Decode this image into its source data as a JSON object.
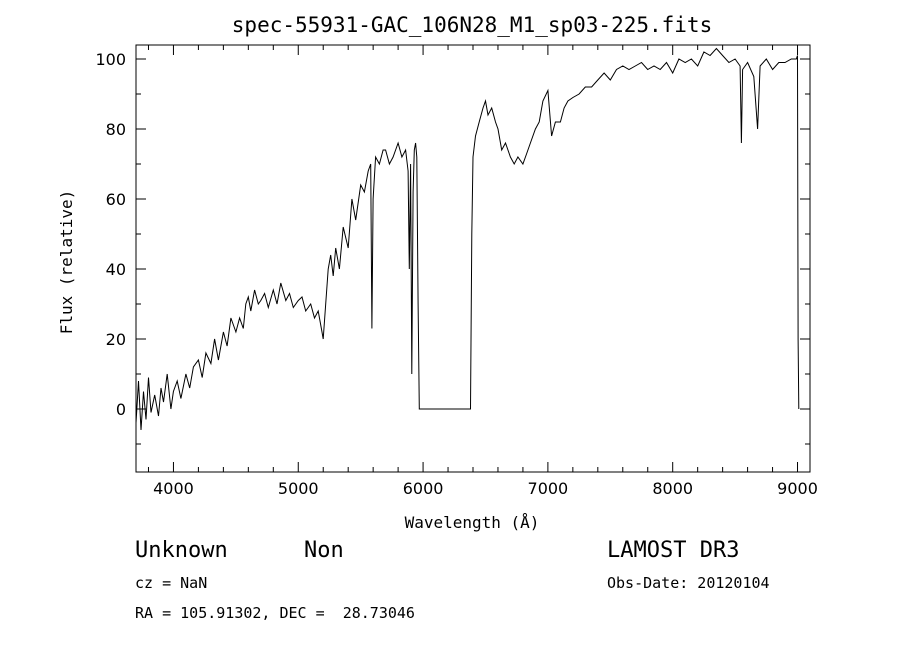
{
  "chart_data": {
    "type": "line",
    "title": "spec-55931-GAC_106N28_M1_sp03-225.fits",
    "xlabel": "Wavelength (Å)",
    "ylabel": "Flux (relative)",
    "xlim": [
      3700,
      9100
    ],
    "ylim": [
      -18,
      104
    ],
    "xticks": [
      4000,
      5000,
      6000,
      7000,
      8000,
      9000
    ],
    "yticks": [
      0,
      20,
      40,
      60,
      80,
      100
    ],
    "grid": false,
    "series": [
      {
        "x": [
          3700,
          3720,
          3740,
          3760,
          3780,
          3800,
          3820,
          3850,
          3880,
          3900,
          3920,
          3950,
          3980,
          4000,
          4030,
          4060,
          4100,
          4130,
          4160,
          4200,
          4230,
          4260,
          4300,
          4330,
          4360,
          4400,
          4430,
          4460,
          4500,
          4530,
          4560,
          4580,
          4600,
          4620,
          4650,
          4680,
          4700,
          4730,
          4760,
          4800,
          4830,
          4860,
          4900,
          4930,
          4960,
          5000,
          5030,
          5060,
          5100,
          5130,
          5160,
          5190,
          5200,
          5220,
          5240,
          5260,
          5280,
          5300,
          5330,
          5360,
          5400,
          5430,
          5460,
          5500,
          5530,
          5560,
          5580,
          5590,
          5600,
          5620,
          5650,
          5680,
          5700,
          5730,
          5760,
          5800,
          5830,
          5860,
          5880,
          5890,
          5900,
          5910,
          5920,
          5930,
          5940,
          5950,
          5960,
          5970,
          5980,
          6000,
          6100,
          6200,
          6300,
          6380,
          6390,
          6400,
          6420,
          6450,
          6480,
          6500,
          6520,
          6550,
          6580,
          6600,
          6630,
          6660,
          6700,
          6730,
          6760,
          6800,
          6830,
          6860,
          6900,
          6930,
          6960,
          7000,
          7030,
          7060,
          7100,
          7130,
          7160,
          7200,
          7250,
          7300,
          7350,
          7400,
          7450,
          7500,
          7550,
          7600,
          7650,
          7700,
          7750,
          7800,
          7850,
          7900,
          7950,
          8000,
          8050,
          8100,
          8150,
          8200,
          8250,
          8300,
          8350,
          8400,
          8450,
          8500,
          8540,
          8550,
          8560,
          8600,
          8650,
          8680,
          8700,
          8750,
          8800,
          8850,
          8900,
          8950,
          8990,
          9000,
          9005,
          9010
        ],
        "y": [
          -4,
          8,
          -6,
          5,
          -3,
          9,
          -1,
          4,
          -2,
          6,
          2,
          10,
          0,
          5,
          8,
          3,
          10,
          6,
          12,
          14,
          9,
          16,
          13,
          20,
          14,
          22,
          18,
          26,
          22,
          26,
          23,
          30,
          32,
          28,
          34,
          30,
          31,
          33,
          29,
          34,
          30,
          36,
          31,
          33,
          29,
          31,
          32,
          28,
          30,
          26,
          28,
          22,
          20,
          30,
          40,
          44,
          38,
          46,
          40,
          52,
          46,
          60,
          54,
          64,
          62,
          68,
          70,
          23,
          60,
          72,
          70,
          74,
          74,
          70,
          72,
          76,
          72,
          74,
          68,
          40,
          70,
          10,
          62,
          74,
          76,
          72,
          30,
          0,
          0,
          0,
          0,
          0,
          0,
          0,
          50,
          72,
          78,
          82,
          86,
          88,
          84,
          86,
          82,
          80,
          74,
          76,
          72,
          70,
          72,
          70,
          73,
          76,
          80,
          82,
          88,
          91,
          78,
          82,
          82,
          86,
          88,
          89,
          90,
          92,
          92,
          94,
          96,
          94,
          97,
          98,
          97,
          98,
          99,
          97,
          98,
          97,
          99,
          96,
          100,
          99,
          100,
          98,
          102,
          101,
          103,
          101,
          99,
          100,
          98,
          76,
          97,
          99,
          95,
          80,
          98,
          100,
          97,
          99,
          99,
          100,
          100,
          101,
          20,
          0
        ]
      }
    ]
  },
  "info": {
    "object_class": "Unknown",
    "subclass": "Non",
    "survey": "LAMOST DR3",
    "cz": "cz = NaN",
    "obs_date": "Obs-Date: 20120104",
    "coords": "RA = 105.91302, DEC =  28.73046"
  }
}
